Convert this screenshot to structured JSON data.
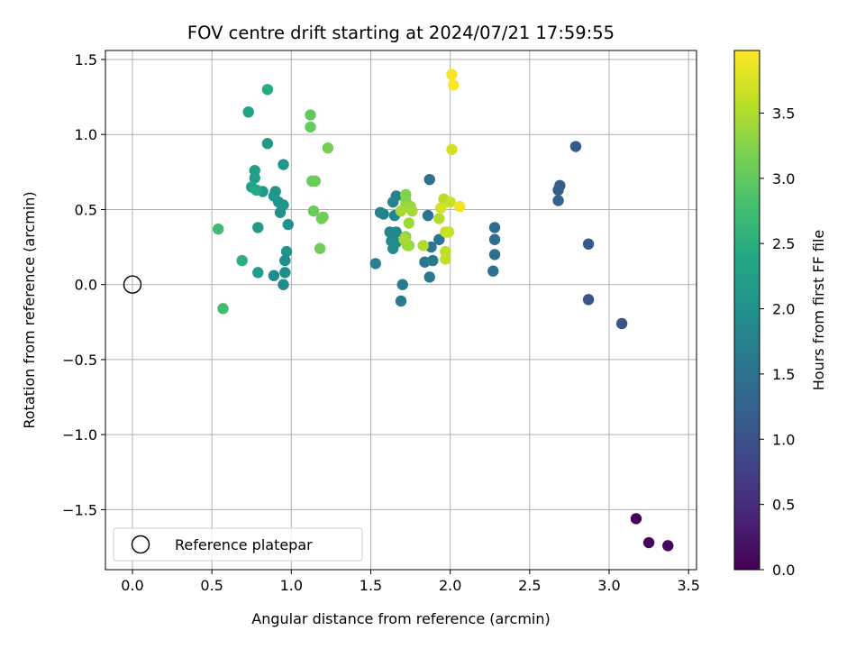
{
  "chart_data": {
    "type": "scatter",
    "title": "FOV centre drift starting at 2024/07/21 17:59:55",
    "xlabel": "Angular distance from reference (arcmin)",
    "ylabel": "Rotation from reference (arcmin)",
    "xlim": [
      -0.17,
      3.55
    ],
    "ylim": [
      -1.9,
      1.56
    ],
    "xticks": [
      0.0,
      0.5,
      1.0,
      1.5,
      2.0,
      2.5,
      3.0,
      3.5
    ],
    "xtick_labels": [
      "0.0",
      "0.5",
      "1.0",
      "1.5",
      "2.0",
      "2.5",
      "3.0",
      "3.5"
    ],
    "yticks": [
      -1.5,
      -1.0,
      -0.5,
      0.0,
      0.5,
      1.0,
      1.5
    ],
    "ytick_labels": [
      "−1.5",
      "−1.0",
      "−0.5",
      "0.0",
      "0.5",
      "1.0",
      "1.5"
    ],
    "grid": true,
    "legend_position": "lower-left",
    "legend": [
      {
        "label": "Reference platepar",
        "marker": "open-circle"
      }
    ],
    "colormap": "viridis",
    "colorbar": {
      "label": "Hours from first FF file",
      "range": [
        0.0,
        3.98
      ],
      "ticks": [
        0.0,
        0.5,
        1.0,
        1.5,
        2.0,
        2.5,
        3.0,
        3.5
      ],
      "tick_labels": [
        "0.0",
        "0.5",
        "1.0",
        "1.5",
        "2.0",
        "2.5",
        "3.0",
        "3.5"
      ]
    },
    "reference_point": {
      "x": 0.0,
      "y": 0.0
    },
    "points": [
      {
        "x": 3.17,
        "y": -1.56,
        "c": 0.02
      },
      {
        "x": 3.25,
        "y": -1.72,
        "c": 0.05
      },
      {
        "x": 3.37,
        "y": -1.74,
        "c": 0.08
      },
      {
        "x": 3.08,
        "y": -0.26,
        "c": 1.0
      },
      {
        "x": 2.87,
        "y": -0.1,
        "c": 1.05
      },
      {
        "x": 2.87,
        "y": 0.27,
        "c": 1.1
      },
      {
        "x": 2.79,
        "y": 0.92,
        "c": 1.12
      },
      {
        "x": 2.69,
        "y": 0.66,
        "c": 1.15
      },
      {
        "x": 2.68,
        "y": 0.63,
        "c": 1.2
      },
      {
        "x": 2.68,
        "y": 0.56,
        "c": 1.25
      },
      {
        "x": 2.28,
        "y": 0.38,
        "c": 1.4
      },
      {
        "x": 2.28,
        "y": 0.3,
        "c": 1.42
      },
      {
        "x": 2.28,
        "y": 0.2,
        "c": 1.45
      },
      {
        "x": 2.27,
        "y": 0.09,
        "c": 1.48
      },
      {
        "x": 1.87,
        "y": 0.7,
        "c": 1.5
      },
      {
        "x": 1.86,
        "y": 0.46,
        "c": 1.52
      },
      {
        "x": 1.93,
        "y": 0.3,
        "c": 1.55
      },
      {
        "x": 1.88,
        "y": 0.25,
        "c": 1.55
      },
      {
        "x": 1.84,
        "y": 0.15,
        "c": 1.57
      },
      {
        "x": 1.89,
        "y": 0.16,
        "c": 1.6
      },
      {
        "x": 1.87,
        "y": 0.05,
        "c": 1.62
      },
      {
        "x": 1.7,
        "y": 0.0,
        "c": 1.62
      },
      {
        "x": 1.69,
        "y": -0.11,
        "c": 1.65
      },
      {
        "x": 1.53,
        "y": 0.14,
        "c": 1.7
      },
      {
        "x": 1.56,
        "y": 0.48,
        "c": 1.72
      },
      {
        "x": 1.58,
        "y": 0.47,
        "c": 1.75
      },
      {
        "x": 1.64,
        "y": 0.55,
        "c": 1.75
      },
      {
        "x": 1.66,
        "y": 0.59,
        "c": 1.78
      },
      {
        "x": 1.65,
        "y": 0.46,
        "c": 1.8
      },
      {
        "x": 1.62,
        "y": 0.35,
        "c": 1.8
      },
      {
        "x": 1.66,
        "y": 0.35,
        "c": 1.82
      },
      {
        "x": 1.63,
        "y": 0.29,
        "c": 1.85
      },
      {
        "x": 1.66,
        "y": 0.28,
        "c": 1.88
      },
      {
        "x": 1.64,
        "y": 0.24,
        "c": 1.9
      },
      {
        "x": 0.95,
        "y": 0.0,
        "c": 1.9
      },
      {
        "x": 0.89,
        "y": 0.06,
        "c": 1.92
      },
      {
        "x": 0.96,
        "y": 0.08,
        "c": 1.95
      },
      {
        "x": 0.96,
        "y": 0.16,
        "c": 1.95
      },
      {
        "x": 0.97,
        "y": 0.22,
        "c": 2.0
      },
      {
        "x": 0.98,
        "y": 0.4,
        "c": 2.0
      },
      {
        "x": 0.93,
        "y": 0.48,
        "c": 2.02
      },
      {
        "x": 0.95,
        "y": 0.53,
        "c": 2.05
      },
      {
        "x": 0.92,
        "y": 0.55,
        "c": 2.05
      },
      {
        "x": 0.89,
        "y": 0.59,
        "c": 2.08
      },
      {
        "x": 0.9,
        "y": 0.62,
        "c": 2.1
      },
      {
        "x": 0.95,
        "y": 0.8,
        "c": 2.1
      },
      {
        "x": 0.85,
        "y": 0.94,
        "c": 2.12
      },
      {
        "x": 0.82,
        "y": 0.62,
        "c": 2.15
      },
      {
        "x": 0.79,
        "y": 0.38,
        "c": 2.15
      },
      {
        "x": 0.79,
        "y": 0.08,
        "c": 2.2
      },
      {
        "x": 0.77,
        "y": 0.76,
        "c": 2.2
      },
      {
        "x": 0.77,
        "y": 0.71,
        "c": 2.25
      },
      {
        "x": 0.75,
        "y": 0.65,
        "c": 2.3
      },
      {
        "x": 0.73,
        "y": 1.15,
        "c": 2.3
      },
      {
        "x": 0.78,
        "y": 0.63,
        "c": 2.4
      },
      {
        "x": 0.85,
        "y": 1.3,
        "c": 2.45
      },
      {
        "x": 0.69,
        "y": 0.16,
        "c": 2.5
      },
      {
        "x": 0.54,
        "y": 0.37,
        "c": 2.7
      },
      {
        "x": 0.57,
        "y": -0.16,
        "c": 2.75
      },
      {
        "x": 1.12,
        "y": 1.13,
        "c": 3.0
      },
      {
        "x": 1.12,
        "y": 1.05,
        "c": 3.02
      },
      {
        "x": 1.13,
        "y": 0.69,
        "c": 3.05
      },
      {
        "x": 1.14,
        "y": 0.49,
        "c": 3.05
      },
      {
        "x": 1.15,
        "y": 0.69,
        "c": 3.08
      },
      {
        "x": 1.18,
        "y": 0.24,
        "c": 3.1
      },
      {
        "x": 1.19,
        "y": 0.44,
        "c": 3.1
      },
      {
        "x": 1.2,
        "y": 0.45,
        "c": 3.12
      },
      {
        "x": 1.23,
        "y": 0.91,
        "c": 3.15
      },
      {
        "x": 1.72,
        "y": 0.6,
        "c": 3.2
      },
      {
        "x": 1.72,
        "y": 0.56,
        "c": 3.25
      },
      {
        "x": 1.72,
        "y": 0.32,
        "c": 3.3
      },
      {
        "x": 1.74,
        "y": 0.26,
        "c": 3.3
      },
      {
        "x": 1.72,
        "y": 0.52,
        "c": 3.35
      },
      {
        "x": 1.75,
        "y": 0.52,
        "c": 3.35
      },
      {
        "x": 1.74,
        "y": 0.41,
        "c": 3.4
      },
      {
        "x": 1.73,
        "y": 0.26,
        "c": 3.4
      },
      {
        "x": 1.76,
        "y": 0.49,
        "c": 3.42
      },
      {
        "x": 1.71,
        "y": 0.3,
        "c": 3.45
      },
      {
        "x": 1.69,
        "y": 0.49,
        "c": 3.45
      },
      {
        "x": 1.83,
        "y": 0.26,
        "c": 3.5
      },
      {
        "x": 1.93,
        "y": 0.44,
        "c": 3.52
      },
      {
        "x": 1.96,
        "y": 0.57,
        "c": 3.55
      },
      {
        "x": 1.97,
        "y": 0.55,
        "c": 3.55
      },
      {
        "x": 1.97,
        "y": 0.22,
        "c": 3.58
      },
      {
        "x": 1.97,
        "y": 0.17,
        "c": 3.6
      },
      {
        "x": 1.97,
        "y": 0.35,
        "c": 3.62
      },
      {
        "x": 1.99,
        "y": 0.35,
        "c": 3.65
      },
      {
        "x": 2.0,
        "y": 0.55,
        "c": 3.65
      },
      {
        "x": 2.01,
        "y": 0.9,
        "c": 3.7
      },
      {
        "x": 1.94,
        "y": 0.51,
        "c": 3.72
      },
      {
        "x": 2.06,
        "y": 0.52,
        "c": 3.9
      },
      {
        "x": 2.01,
        "y": 1.4,
        "c": 3.95
      },
      {
        "x": 2.02,
        "y": 1.33,
        "c": 3.97
      }
    ]
  }
}
